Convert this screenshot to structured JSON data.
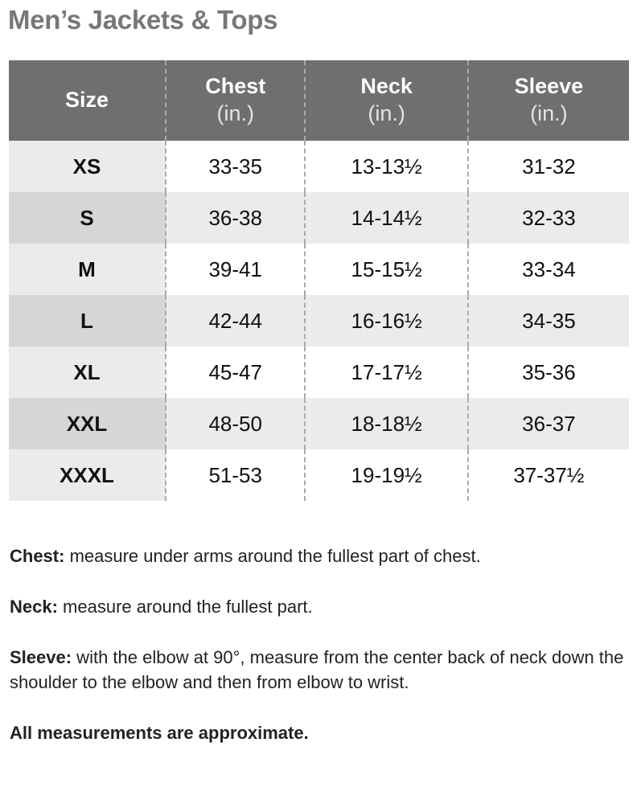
{
  "title": "Men’s Jackets & Tops",
  "table": {
    "headers": [
      {
        "label": "Size",
        "unit": ""
      },
      {
        "label": "Chest",
        "unit": "(in.)"
      },
      {
        "label": "Neck",
        "unit": "(in.)"
      },
      {
        "label": "Sleeve",
        "unit": "(in.)"
      }
    ],
    "rows": [
      [
        "XS",
        "33-35",
        "13-13½",
        "31-32"
      ],
      [
        "S",
        "36-38",
        "14-14½",
        "32-33"
      ],
      [
        "M",
        "39-41",
        "15-15½",
        "33-34"
      ],
      [
        "L",
        "42-44",
        "16-16½",
        "34-35"
      ],
      [
        "XL",
        "45-47",
        "17-17½",
        "35-36"
      ],
      [
        "XXL",
        "48-50",
        "18-18½",
        "36-37"
      ],
      [
        "XXXL",
        "51-53",
        "19-19½",
        "37-37½"
      ]
    ]
  },
  "notes": [
    {
      "term": "Chest:",
      "text": " measure under arms around the fullest part of chest."
    },
    {
      "term": "Neck:",
      "text": " measure around the fullest part."
    },
    {
      "term": "Sleeve:",
      "text": " with the elbow at 90°, measure from the center back of neck down the shoulder to the elbow and then from elbow to wrist."
    }
  ],
  "disclaimer": "All measurements are approximate."
}
